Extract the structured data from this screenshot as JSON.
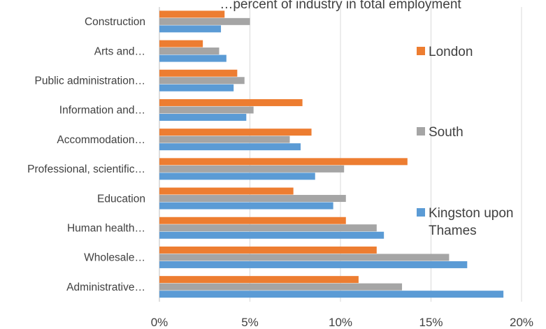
{
  "chart_data": {
    "type": "bar",
    "orientation": "horizontal",
    "title": "…percent of industry in total employment",
    "categories": [
      "Administrative…",
      "Wholesale…",
      "Human health…",
      "Education",
      "Professional, scientific…",
      "Accommodation…",
      "Information and…",
      "Public administration…",
      "Arts and…",
      "Construction"
    ],
    "series": [
      {
        "name": "Kingston upon Thames",
        "color": "#5B9BD5",
        "values": [
          19.0,
          17.0,
          12.4,
          9.6,
          8.6,
          7.8,
          4.8,
          4.1,
          3.7,
          3.4
        ]
      },
      {
        "name": "South",
        "color": "#A5A5A5",
        "values": [
          13.4,
          16.0,
          12.0,
          10.3,
          10.2,
          7.2,
          5.2,
          4.7,
          3.3,
          5.0
        ]
      },
      {
        "name": "London",
        "color": "#ED7D31",
        "values": [
          11.0,
          12.0,
          10.3,
          7.4,
          13.7,
          8.4,
          7.9,
          4.3,
          2.4,
          3.6
        ]
      }
    ],
    "xlim": [
      0,
      20
    ],
    "x_ticks": [
      "0%",
      "5%",
      "10%",
      "15%",
      "20%"
    ],
    "grid": true,
    "legend": {
      "placement": "right",
      "entries": [
        "London",
        "South",
        "Kingston upon Thames"
      ]
    },
    "xlabel": "",
    "ylabel": ""
  }
}
